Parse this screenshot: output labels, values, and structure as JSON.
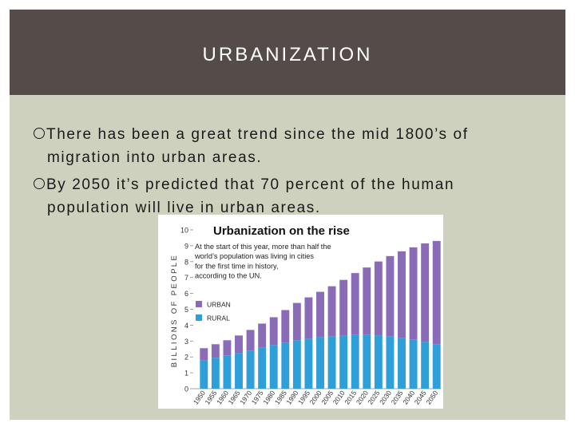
{
  "slide": {
    "title": "URBANIZATION",
    "bullets": [
      {
        "line1": "There has been a great trend since the mid 1800’s of",
        "line2": "migration into urban areas."
      },
      {
        "line1": "By 2050 it’s predicted that 70 percent of the human",
        "line2": "population will live in urban areas."
      }
    ]
  },
  "chart_data": {
    "type": "bar",
    "stacked": true,
    "title": "Urbanization on the rise",
    "annotation": [
      "At the start of this year, more than half the",
      "world’s population was living in cities",
      "for the first time in history,",
      "according to the UN."
    ],
    "ylabel": "BILLIONS OF PEOPLE",
    "xlabel": "",
    "ylim": [
      0,
      10
    ],
    "yticks": [
      "0",
      "1",
      "2",
      "3",
      "4",
      "5",
      "6",
      "7",
      "8",
      "9",
      "10"
    ],
    "categories": [
      "1950",
      "1955",
      "1960",
      "1965",
      "1970",
      "1975",
      "1980",
      "1985",
      "1990",
      "1995",
      "2000",
      "2005",
      "2010",
      "2015",
      "2020",
      "2025",
      "2030",
      "2035",
      "2040",
      "2045",
      "2050"
    ],
    "series": [
      {
        "name": "RURAL",
        "color": "#2e9fd8",
        "values": [
          1.8,
          1.95,
          2.1,
          2.25,
          2.4,
          2.6,
          2.75,
          2.9,
          3.05,
          3.15,
          3.25,
          3.3,
          3.35,
          3.38,
          3.38,
          3.36,
          3.3,
          3.2,
          3.1,
          2.95,
          2.8
        ]
      },
      {
        "name": "URBAN",
        "color": "#8a6bb8",
        "values": [
          0.75,
          0.85,
          0.95,
          1.1,
          1.3,
          1.5,
          1.75,
          2.05,
          2.35,
          2.6,
          2.85,
          3.15,
          3.5,
          3.9,
          4.25,
          4.65,
          5.05,
          5.45,
          5.8,
          6.2,
          6.5
        ]
      }
    ],
    "legend": {
      "position": "left",
      "order": [
        "URBAN",
        "RURAL"
      ]
    },
    "grid": false
  }
}
